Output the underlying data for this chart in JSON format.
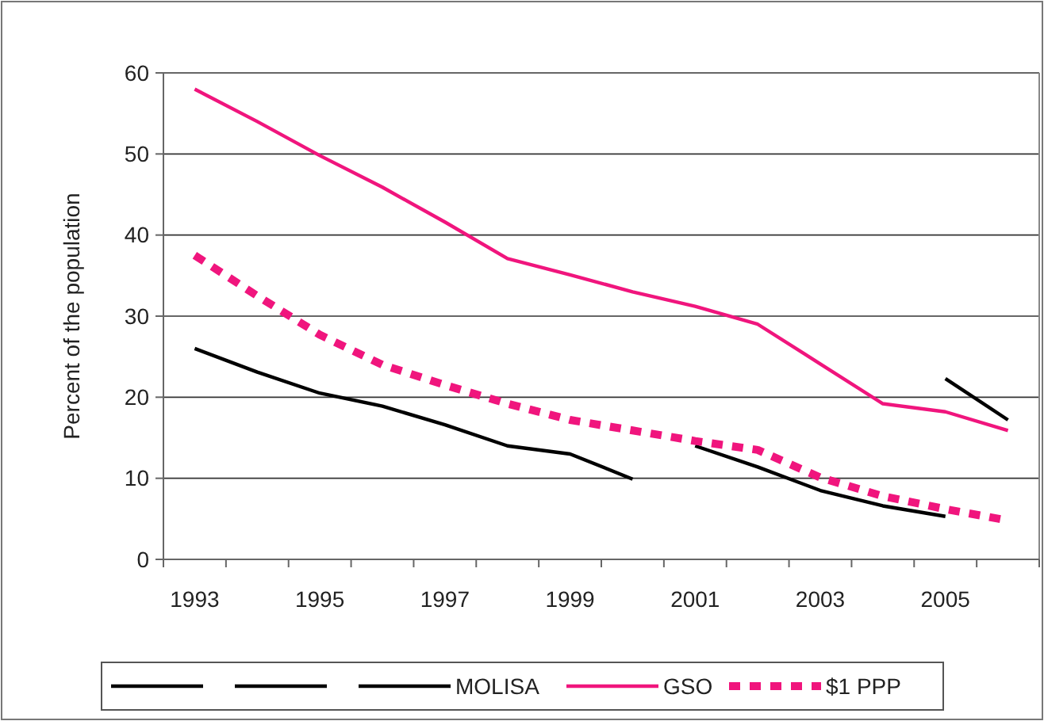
{
  "chart_data": {
    "type": "line",
    "ylabel": "Percent of the population",
    "categories": [
      "1993",
      null,
      "1995",
      null,
      "1997",
      null,
      "1999",
      null,
      "2001",
      null,
      "2003",
      null,
      "2005",
      null
    ],
    "ylim": [
      0,
      60
    ],
    "yticks": [
      0,
      10,
      20,
      30,
      40,
      50,
      60
    ],
    "grid": "y",
    "legend": "bottom",
    "marker": "none",
    "series": [
      {
        "color": "#000000",
        "line_style": "solid",
        "values": [
          26,
          23.1,
          20.5,
          18.9,
          16.6,
          14,
          13,
          9.9,
          null,
          null,
          null,
          null,
          null,
          null
        ]
      },
      {
        "color": "#000000",
        "line_style": "solid",
        "values": [
          null,
          null,
          null,
          null,
          null,
          null,
          null,
          null,
          14,
          11.4,
          8.5,
          6.6,
          5.3,
          null
        ]
      },
      {
        "name": "MOLISA",
        "color": "#000000",
        "line_style": "solid",
        "values": [
          null,
          null,
          null,
          null,
          null,
          null,
          null,
          null,
          null,
          null,
          null,
          null,
          22.3,
          17.2
        ]
      },
      {
        "name": "GSO",
        "color": "#f0157d",
        "line_style": "solid",
        "values": [
          58,
          54,
          49.8,
          45.9,
          41.6,
          37.1,
          35.1,
          33,
          31.2,
          29,
          24.1,
          19.2,
          18.2,
          15.9
        ]
      },
      {
        "name": "$1 PPP",
        "color": "#f0157d",
        "line_style": "dashed",
        "values": [
          37.5,
          32.5,
          27.7,
          24,
          21.5,
          19.2,
          17.2,
          15.9,
          14.6,
          13.5,
          10.1,
          7.8,
          6.2,
          4.8
        ]
      }
    ]
  }
}
